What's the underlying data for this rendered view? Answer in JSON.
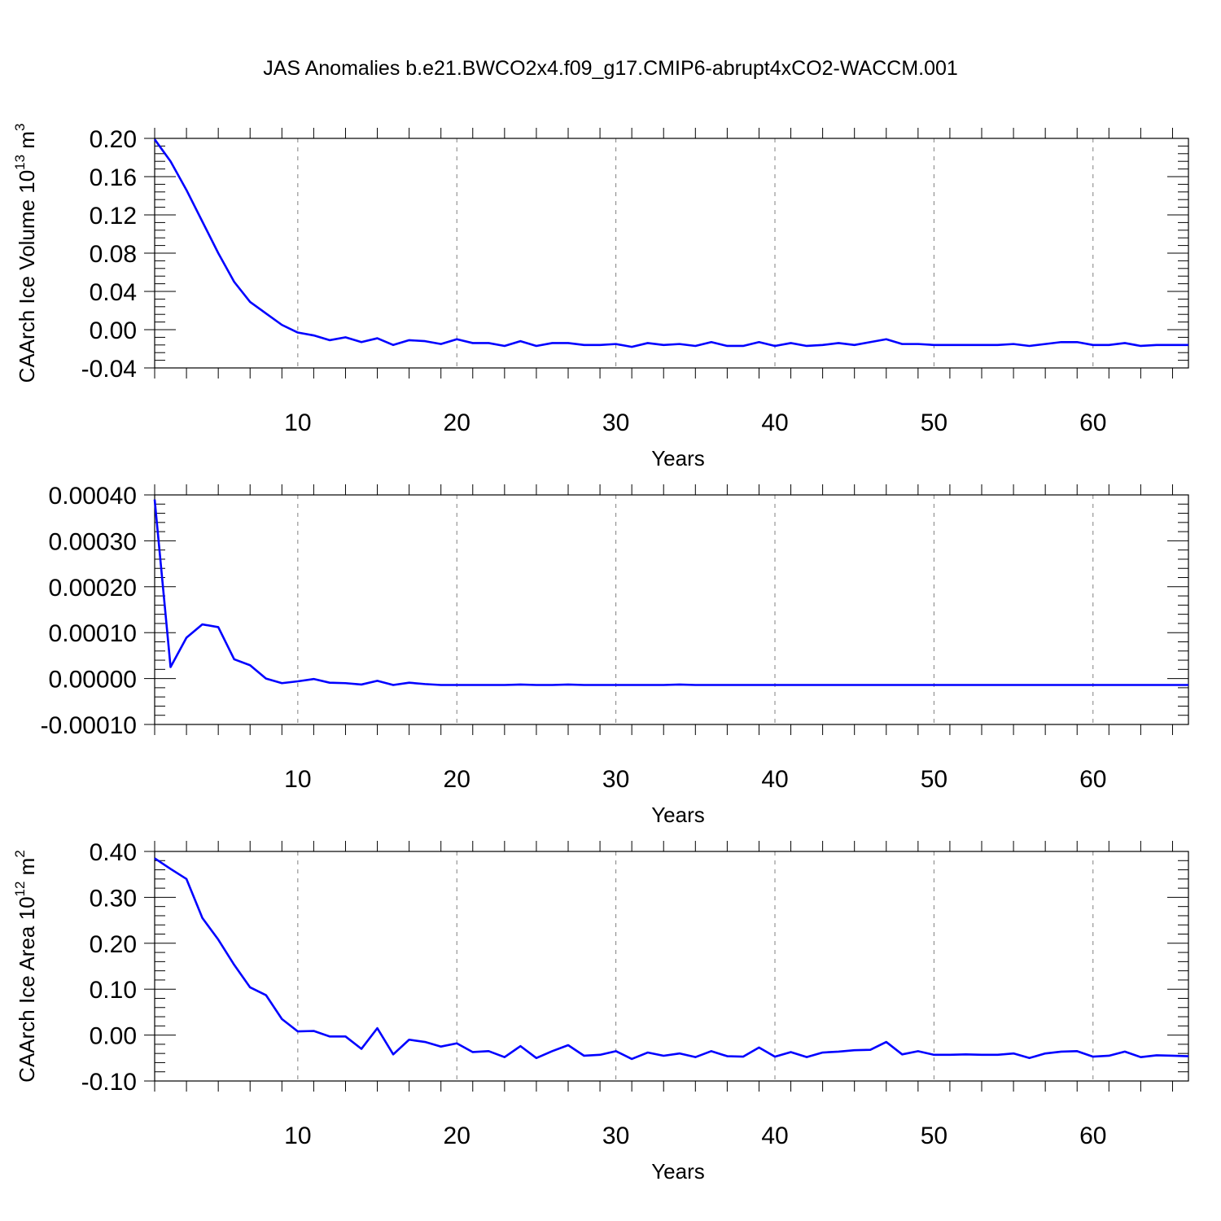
{
  "title": "JAS Anomalies b.e21.BWCO2x4.f09_g17.CMIP6-abrupt4xCO2-WACCM.001",
  "colors": {
    "series": "#0000ff",
    "axes": "#000000",
    "grid": "#808080"
  },
  "chart_data": [
    {
      "type": "line",
      "xlabel": "Years",
      "ylabel": "CAArch Ice Volume 10",
      "ylabel_sup": "13",
      "ylabel_suffix": " m",
      "ylabel_sup2": "3",
      "xlim": [
        1,
        66
      ],
      "ylim": [
        -0.04,
        0.2
      ],
      "xticks": [
        10,
        20,
        30,
        40,
        50,
        60
      ],
      "xtick_labels": [
        "10",
        "20",
        "30",
        "40",
        "50",
        "60"
      ],
      "yticks": [
        0.2,
        0.16,
        0.12,
        0.08,
        0.04,
        0.0,
        -0.04
      ],
      "ytick_labels": [
        "0.20",
        "0.16",
        "0.12",
        "0.08",
        "0.04",
        "0.00",
        "-0.04"
      ],
      "x_grid": "dashed vertical at major x ticks",
      "series": [
        {
          "x": [
            1,
            2,
            3,
            4,
            5,
            6,
            7,
            8,
            9,
            10,
            11,
            12,
            13,
            14,
            15,
            16,
            17,
            18,
            19,
            20,
            21,
            22,
            23,
            24,
            25,
            26,
            27,
            28,
            29,
            30,
            31,
            32,
            33,
            34,
            35,
            36,
            37,
            38,
            39,
            40,
            41,
            42,
            43,
            44,
            45,
            46,
            47,
            48,
            49,
            50,
            51,
            52,
            53,
            54,
            55,
            56,
            57,
            58,
            59,
            60,
            61,
            62,
            63,
            64,
            65,
            66
          ],
          "values": [
            0.199,
            0.176,
            0.146,
            0.113,
            0.08,
            0.05,
            0.029,
            0.017,
            0.005,
            -0.003,
            -0.006,
            -0.011,
            -0.008,
            -0.013,
            -0.009,
            -0.016,
            -0.011,
            -0.012,
            -0.015,
            -0.01,
            -0.014,
            -0.014,
            -0.017,
            -0.012,
            -0.017,
            -0.014,
            -0.014,
            -0.016,
            -0.016,
            -0.015,
            -0.018,
            -0.014,
            -0.016,
            -0.015,
            -0.017,
            -0.013,
            -0.017,
            -0.017,
            -0.013,
            -0.017,
            -0.014,
            -0.017,
            -0.016,
            -0.014,
            -0.016,
            -0.013,
            -0.01,
            -0.015,
            -0.015,
            -0.016,
            -0.016,
            -0.016,
            -0.016,
            -0.016,
            -0.015,
            -0.017,
            -0.015,
            -0.013,
            -0.013,
            -0.016,
            -0.016,
            -0.014,
            -0.017,
            -0.016,
            -0.016,
            -0.016
          ]
        }
      ]
    },
    {
      "type": "line",
      "xlabel": "Years",
      "ylabel": "",
      "xlim": [
        1,
        66
      ],
      "ylim": [
        -0.0001,
        0.0004
      ],
      "xticks": [
        10,
        20,
        30,
        40,
        50,
        60
      ],
      "xtick_labels": [
        "10",
        "20",
        "30",
        "40",
        "50",
        "60"
      ],
      "yticks": [
        0.0004,
        0.0003,
        0.0002,
        0.0001,
        0.0,
        -0.0001
      ],
      "ytick_labels": [
        "0.00040",
        "0.00030",
        "0.00020",
        "0.00010",
        "0.00000",
        "-0.00010"
      ],
      "x_grid": "dashed vertical at major x ticks",
      "series": [
        {
          "x": [
            1,
            2,
            3,
            4,
            5,
            6,
            7,
            8,
            9,
            10,
            11,
            12,
            13,
            14,
            15,
            16,
            17,
            18,
            19,
            20,
            21,
            22,
            23,
            24,
            25,
            26,
            27,
            28,
            29,
            30,
            31,
            32,
            33,
            34,
            35,
            36,
            37,
            38,
            39,
            40,
            41,
            42,
            43,
            44,
            45,
            46,
            47,
            48,
            49,
            50,
            51,
            52,
            53,
            54,
            55,
            56,
            57,
            58,
            59,
            60,
            61,
            62,
            63,
            64,
            65,
            66
          ],
          "values": [
            0.00039,
            2.5e-05,
            8.9e-05,
            0.000118,
            0.000112,
            4.2e-05,
            2.9e-05,
            0.0,
            -1e-05,
            -6e-06,
            -1e-06,
            -9e-06,
            -1e-05,
            -1.3e-05,
            -5e-06,
            -1.4e-05,
            -9e-06,
            -1.2e-05,
            -1.4e-05,
            -1.4e-05,
            -1.4e-05,
            -1.4e-05,
            -1.4e-05,
            -1.3e-05,
            -1.4e-05,
            -1.4e-05,
            -1.3e-05,
            -1.4e-05,
            -1.4e-05,
            -1.4e-05,
            -1.4e-05,
            -1.4e-05,
            -1.4e-05,
            -1.3e-05,
            -1.4e-05,
            -1.4e-05,
            -1.4e-05,
            -1.4e-05,
            -1.4e-05,
            -1.4e-05,
            -1.4e-05,
            -1.4e-05,
            -1.4e-05,
            -1.4e-05,
            -1.4e-05,
            -1.4e-05,
            -1.4e-05,
            -1.4e-05,
            -1.4e-05,
            -1.4e-05,
            -1.4e-05,
            -1.4e-05,
            -1.4e-05,
            -1.4e-05,
            -1.4e-05,
            -1.4e-05,
            -1.4e-05,
            -1.4e-05,
            -1.4e-05,
            -1.4e-05,
            -1.4e-05,
            -1.4e-05,
            -1.4e-05,
            -1.4e-05,
            -1.4e-05,
            -1.4e-05
          ]
        }
      ]
    },
    {
      "type": "line",
      "xlabel": "Years",
      "ylabel": "CAArch Ice Area 10",
      "ylabel_sup": "12",
      "ylabel_suffix": " m",
      "ylabel_sup2": "2",
      "xlim": [
        1,
        66
      ],
      "ylim": [
        -0.1,
        0.4
      ],
      "xticks": [
        10,
        20,
        30,
        40,
        50,
        60
      ],
      "xtick_labels": [
        "10",
        "20",
        "30",
        "40",
        "50",
        "60"
      ],
      "yticks": [
        0.4,
        0.3,
        0.2,
        0.1,
        0.0,
        -0.1
      ],
      "ytick_labels": [
        "0.40",
        "0.30",
        "0.20",
        "0.10",
        "0.00",
        "-0.10"
      ],
      "x_grid": "dashed vertical at major x ticks",
      "series": [
        {
          "x": [
            1,
            2,
            3,
            4,
            5,
            6,
            7,
            8,
            9,
            10,
            11,
            12,
            13,
            14,
            15,
            16,
            17,
            18,
            19,
            20,
            21,
            22,
            23,
            24,
            25,
            26,
            27,
            28,
            29,
            30,
            31,
            32,
            33,
            34,
            35,
            36,
            37,
            38,
            39,
            40,
            41,
            42,
            43,
            44,
            45,
            46,
            47,
            48,
            49,
            50,
            51,
            52,
            53,
            54,
            55,
            56,
            57,
            58,
            59,
            60,
            61,
            62,
            63,
            64,
            65,
            66
          ],
          "values": [
            0.385,
            0.362,
            0.34,
            0.255,
            0.208,
            0.153,
            0.104,
            0.087,
            0.035,
            0.008,
            0.009,
            -0.003,
            -0.003,
            -0.03,
            0.015,
            -0.042,
            -0.01,
            -0.015,
            -0.025,
            -0.018,
            -0.037,
            -0.035,
            -0.048,
            -0.024,
            -0.05,
            -0.035,
            -0.022,
            -0.045,
            -0.043,
            -0.035,
            -0.052,
            -0.038,
            -0.045,
            -0.04,
            -0.048,
            -0.035,
            -0.046,
            -0.047,
            -0.027,
            -0.047,
            -0.037,
            -0.048,
            -0.038,
            -0.036,
            -0.033,
            -0.032,
            -0.015,
            -0.042,
            -0.035,
            -0.043,
            -0.043,
            -0.042,
            -0.043,
            -0.043,
            -0.04,
            -0.05,
            -0.04,
            -0.036,
            -0.035,
            -0.047,
            -0.045,
            -0.036,
            -0.048,
            -0.044,
            -0.045,
            -0.046
          ]
        }
      ]
    }
  ]
}
